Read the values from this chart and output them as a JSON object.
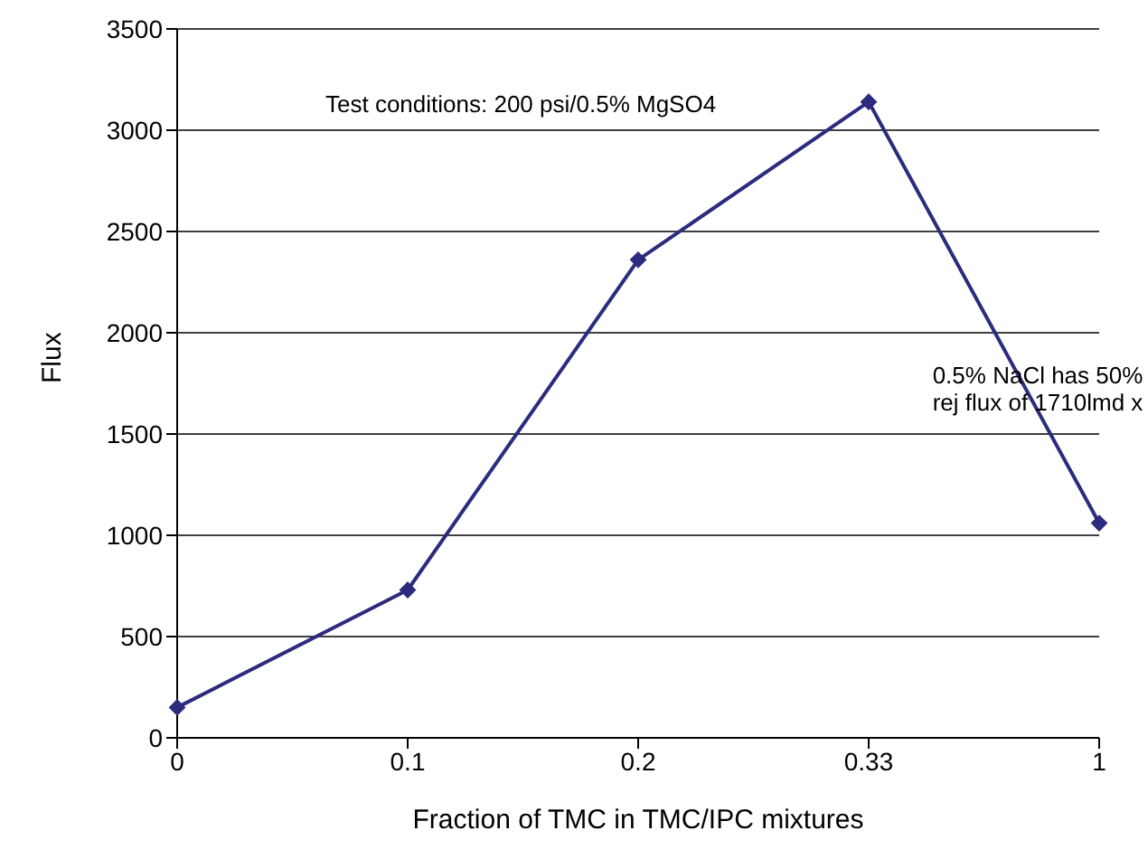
{
  "chart_data": {
    "type": "line",
    "xlabel": "Fraction of TMC in TMC/IPC mixtures",
    "ylabel": "Flux",
    "categories": [
      "0",
      "0.1",
      "0.2",
      "0.33",
      "1"
    ],
    "series": [
      {
        "color": "#2b2b7f",
        "values": [
          150,
          730,
          2360,
          3140,
          1060
        ]
      }
    ],
    "ylim": [
      0,
      3500
    ],
    "yticks": [
      0,
      500,
      1000,
      1500,
      2000,
      2500,
      3000,
      3500
    ],
    "grid": "y",
    "marker": "diamond",
    "line_style": "solid",
    "legend": false,
    "annotations": [
      "Test conditions: 200 psi/0.5% MgSO4",
      "0.5% NaCl has 50% rej flux of 1710lmd x"
    ]
  }
}
